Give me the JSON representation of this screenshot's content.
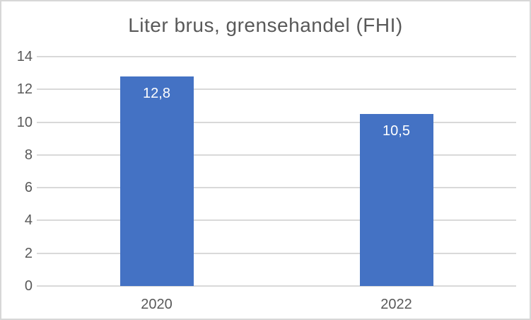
{
  "window": {
    "background": "#FFFFFF",
    "border_color": "#D7D7D7"
  },
  "chart_data": {
    "type": "bar",
    "title": "Liter brus, grensehandel (FHI)",
    "categories": [
      "2020",
      "2022"
    ],
    "values": [
      12.8,
      10.5
    ],
    "value_labels": [
      "12,8",
      "10,5"
    ],
    "series": [
      {
        "name": "Liter brus, grensehandel (FHI)",
        "values": [
          12.8,
          10.5
        ]
      }
    ],
    "xlabel": "",
    "ylabel": "",
    "ylim": [
      0,
      14
    ],
    "yticks": [
      0,
      2,
      4,
      6,
      8,
      10,
      12,
      14
    ],
    "ytick_labels": [
      "0",
      "2",
      "4",
      "6",
      "8",
      "10",
      "12",
      "14"
    ],
    "grid": "horizontal",
    "legend": "none",
    "value_label_position": "inside-end",
    "bar_color": "#4472C4",
    "value_label_color": "#FFFFFF",
    "text_color": "#595959",
    "gridline_color": "#D9D9D9",
    "axis_line_color": "#D9D9D9"
  }
}
